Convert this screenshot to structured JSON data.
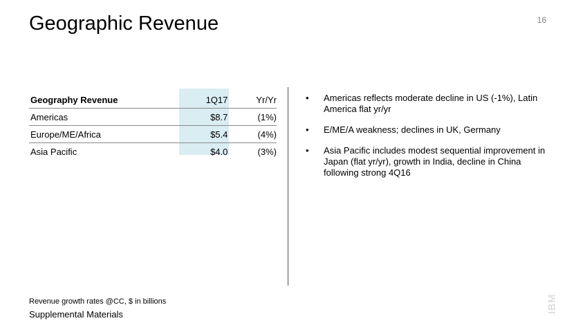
{
  "page": {
    "title": "Geographic Revenue",
    "page_number": "16"
  },
  "table": {
    "headers": [
      "Geography Revenue",
      "1Q17",
      "Yr/Yr"
    ],
    "rows": [
      [
        "Americas",
        "$8.7",
        "(1%)"
      ],
      [
        "Europe/ME/Africa",
        "$5.4",
        "(4%)"
      ],
      [
        "Asia Pacific",
        "$4.0",
        "(3%)"
      ]
    ],
    "highlight_color": "#d9edf2"
  },
  "bullets": {
    "marker": "•",
    "items": [
      "Americas reflects moderate decline in US (-1%), Latin America flat yr/yr",
      "E/ME/A weakness; declines in UK, Germany",
      "Asia Pacific includes modest sequential improvement in Japan (flat yr/yr), growth in India, decline in China following strong 4Q16"
    ]
  },
  "footnote": "Revenue growth rates @CC, $ in billions",
  "footer": "Supplemental Materials",
  "logo": {
    "text": "IBM",
    "icon": "ibm-logo-icon",
    "color": "#c8c8c8"
  }
}
